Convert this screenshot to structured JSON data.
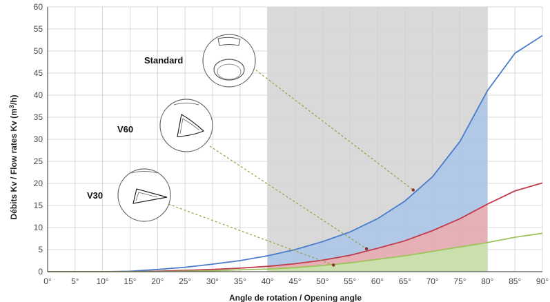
{
  "chart_data": {
    "type": "area",
    "xlabel": "Angle de rotation / Opening angle",
    "ylabel_main": "Débits Kv / Flow rates Kv (m",
    "ylabel_sup": "3",
    "ylabel_tail": "/h)",
    "xlim": [
      0,
      90
    ],
    "ylim": [
      0,
      60
    ],
    "x_ticks": [
      0,
      5,
      10,
      15,
      20,
      25,
      30,
      35,
      40,
      45,
      50,
      55,
      60,
      65,
      70,
      75,
      80,
      85,
      90
    ],
    "x_tick_labels": [
      "0°",
      "5°",
      "10°",
      "15°",
      "20°",
      "25°",
      "30°",
      "35°",
      "40°",
      "45°",
      "50°",
      "55°",
      "60°",
      "65°",
      "70°",
      "75°",
      "80°",
      "85°",
      "90°"
    ],
    "y_ticks": [
      0,
      5,
      10,
      15,
      20,
      25,
      30,
      35,
      40,
      45,
      50,
      55,
      60
    ],
    "y_tick_labels": [
      "0",
      "5",
      "10",
      "15",
      "20",
      "25",
      "30",
      "35",
      "40",
      "45",
      "50",
      "55",
      "60"
    ],
    "grid": true,
    "shaded_region": [
      40,
      80
    ],
    "x": [
      0,
      5,
      10,
      15,
      20,
      25,
      30,
      35,
      40,
      45,
      50,
      55,
      60,
      65,
      70,
      75,
      80,
      85,
      90
    ],
    "series": [
      {
        "name": "Standard",
        "color": "#4a7cc9",
        "fill": "#a9c4e8",
        "values": [
          0,
          0,
          0,
          0.1,
          0.5,
          1.0,
          1.7,
          2.5,
          3.6,
          5.0,
          6.8,
          9.0,
          12.0,
          16.0,
          21.5,
          29.5,
          41.0,
          49.5,
          53.5
        ]
      },
      {
        "name": "V60",
        "color": "#c03a4a",
        "fill": "#e8a8b0",
        "values": [
          0,
          0,
          0,
          0,
          0.1,
          0.3,
          0.5,
          0.8,
          1.2,
          1.8,
          2.6,
          3.7,
          5.3,
          7.0,
          9.3,
          12.0,
          15.3,
          18.3,
          20.1
        ]
      },
      {
        "name": "V30",
        "color": "#9cc45a",
        "fill": "#c7e0a4",
        "values": [
          0,
          0,
          0,
          0,
          0,
          0.1,
          0.2,
          0.4,
          0.6,
          0.9,
          1.4,
          2.0,
          2.8,
          3.6,
          4.6,
          5.6,
          6.6,
          7.8,
          8.7
        ]
      }
    ],
    "annotations": [
      {
        "label": "Standard",
        "points_to": [
          66.5,
          18.5
        ]
      },
      {
        "label": "V60",
        "points_to": [
          58,
          5.2
        ]
      },
      {
        "label": "V30",
        "points_to": [
          52,
          1.5
        ]
      }
    ]
  }
}
